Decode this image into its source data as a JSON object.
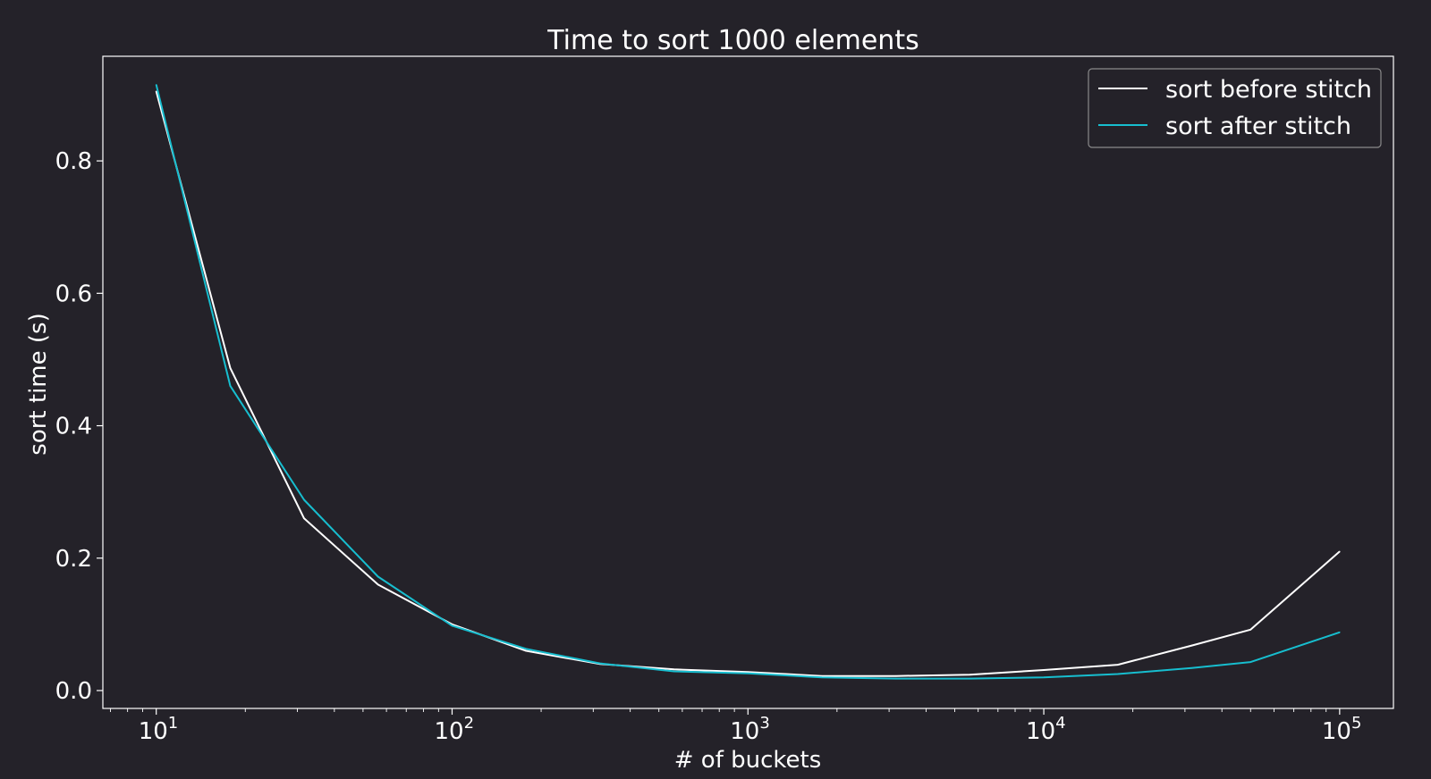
{
  "chart_data": {
    "type": "line",
    "title": "Time to sort 1000 elements",
    "xlabel": "# of buckets",
    "ylabel": "sort time (s)",
    "xscale": "log",
    "xlim": [
      6.6,
      152000
    ],
    "ylim": [
      -0.027,
      0.958
    ],
    "xticks": [
      {
        "base": "10",
        "exp": "1",
        "value": 10
      },
      {
        "base": "10",
        "exp": "2",
        "value": 100
      },
      {
        "base": "10",
        "exp": "3",
        "value": 1000
      },
      {
        "base": "10",
        "exp": "4",
        "value": 10000
      },
      {
        "base": "10",
        "exp": "5",
        "value": 100000
      }
    ],
    "yticks": [
      {
        "label": "0.0",
        "value": 0.0
      },
      {
        "label": "0.2",
        "value": 0.2
      },
      {
        "label": "0.4",
        "value": 0.4
      },
      {
        "label": "0.6",
        "value": 0.6
      },
      {
        "label": "0.8",
        "value": 0.8
      }
    ],
    "x": [
      10,
      17.8,
      31.6,
      56.2,
      100,
      177.8,
      316.2,
      562.3,
      1000,
      1778,
      3162,
      5623,
      10000,
      17783,
      31623,
      50000,
      100000
    ],
    "series": [
      {
        "name": "sort before stitch",
        "color": "#ffffff",
        "values": [
          0.905,
          0.487,
          0.26,
          0.16,
          0.1,
          0.06,
          0.04,
          0.032,
          0.028,
          0.022,
          0.022,
          0.024,
          0.031,
          0.039,
          0.068,
          0.092,
          0.21
        ]
      },
      {
        "name": "sort after stitch",
        "color": "#17becf",
        "values": [
          0.915,
          0.46,
          0.288,
          0.172,
          0.098,
          0.063,
          0.041,
          0.029,
          0.026,
          0.02,
          0.018,
          0.018,
          0.02,
          0.025,
          0.034,
          0.043,
          0.088
        ]
      }
    ],
    "grid": false,
    "legend": "top-right"
  },
  "colors": {
    "background": "#242229",
    "foreground": "#ffffff",
    "legend_border": "#8a8a8a"
  }
}
